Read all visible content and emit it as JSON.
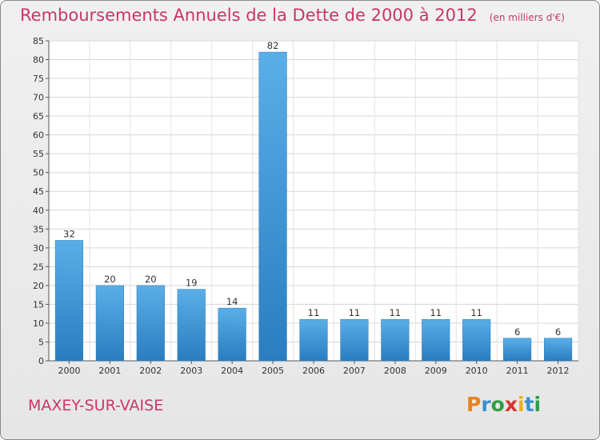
{
  "title": "Remboursements Annuels de la Dette de 2000 à 2012",
  "unit_note": "(en milliers d'€)",
  "commune": "MAXEY-SUR-VAISE",
  "logo": {
    "letters": [
      "P",
      "r",
      "o",
      "x",
      "i",
      "t",
      "i"
    ],
    "colors": [
      "#e8821e",
      "#3a8fd1",
      "#2e9e48",
      "#d6342e",
      "#e8b21e",
      "#3a8fd1",
      "#2e9e48"
    ]
  },
  "chart_data": {
    "type": "bar",
    "categories": [
      "2000",
      "2001",
      "2002",
      "2003",
      "2004",
      "2005",
      "2006",
      "2007",
      "2008",
      "2009",
      "2010",
      "2011",
      "2012"
    ],
    "values": [
      32,
      20,
      20,
      19,
      14,
      82,
      11,
      11,
      11,
      11,
      11,
      6,
      6
    ],
    "ylim": [
      0,
      85
    ],
    "yticks": [
      0,
      5,
      10,
      15,
      20,
      25,
      30,
      35,
      40,
      45,
      50,
      55,
      60,
      65,
      70,
      75,
      80,
      85
    ],
    "grid": true,
    "bar_color": "#3f95d8"
  }
}
